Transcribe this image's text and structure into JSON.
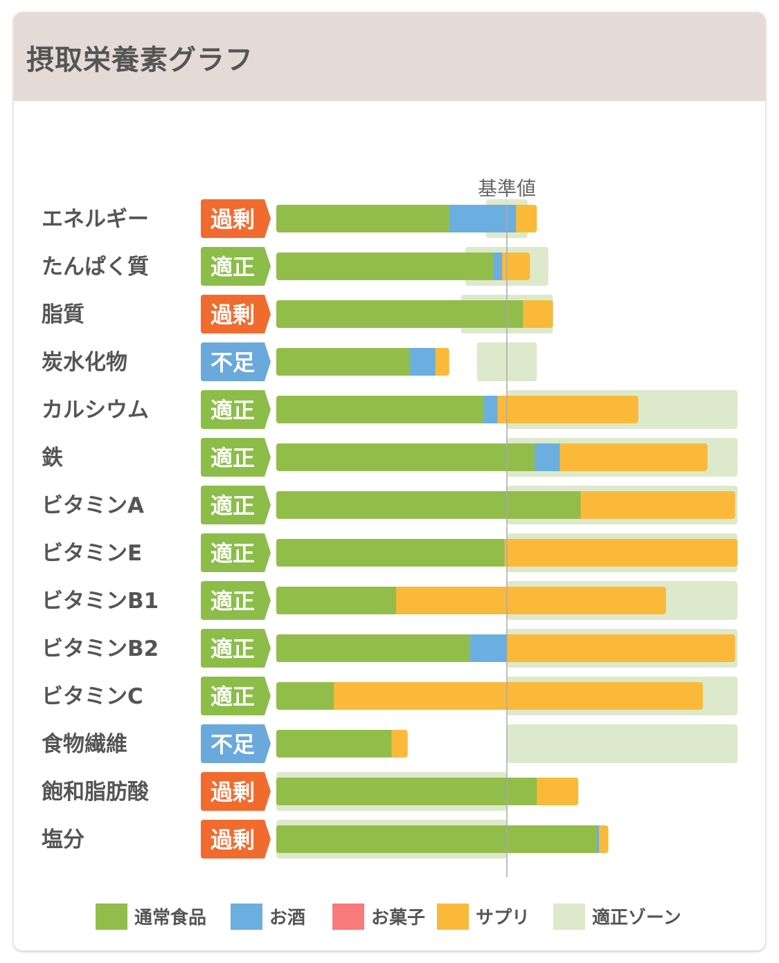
{
  "header": {
    "title": "摂取栄養素グラフ"
  },
  "chart_data": {
    "type": "bar",
    "stacked": true,
    "orientation": "horizontal",
    "reference_label": "基準値",
    "reference_value": 100,
    "x_unit": "% of reference",
    "categories": [
      "エネルギー",
      "たんぱく質",
      "脂質",
      "炭水化物",
      "カルシウム",
      "鉄",
      "ビタミンA",
      "ビタミンE",
      "ビタミンB1",
      "ビタミンB2",
      "ビタミンC",
      "食物繊維",
      "飽和脂肪酸",
      "塩分"
    ],
    "status": [
      "過剰",
      "適正",
      "過剰",
      "不足",
      "適正",
      "適正",
      "適正",
      "適正",
      "適正",
      "適正",
      "適正",
      "不足",
      "過剰",
      "過剰"
    ],
    "status_colors": {
      "過剰": "#f26b2e",
      "適正": "#8bbd48",
      "不足": "#6aa9db"
    },
    "series": [
      {
        "name": "通常食品",
        "color": "#92bd4b",
        "values": [
          75,
          94,
          107,
          58,
          90,
          112,
          132,
          99,
          52,
          84,
          25,
          50,
          113,
          139
        ]
      },
      {
        "name": "お酒",
        "color": "#6aafe0",
        "values": [
          29,
          4,
          0,
          11,
          6,
          11,
          0,
          0,
          0,
          16,
          0,
          0,
          0,
          1
        ]
      },
      {
        "name": "お菓子",
        "color": "#f97a7a",
        "values": [
          0,
          0,
          0,
          0,
          0,
          0,
          0,
          0,
          0,
          0,
          0,
          0,
          0,
          0
        ]
      },
      {
        "name": "サプリ",
        "color": "#fbb93a",
        "values": [
          9,
          12,
          13,
          6,
          61,
          64,
          67,
          101,
          117,
          99,
          160,
          7,
          18,
          4
        ]
      }
    ],
    "zone": {
      "name": "適正ゾーン",
      "color": "#dde9cb",
      "ranges": [
        [
          91,
          109
        ],
        [
          82,
          118
        ],
        [
          80,
          120
        ],
        [
          87,
          113
        ],
        [
          100,
          200
        ],
        [
          100,
          200
        ],
        [
          100,
          200
        ],
        [
          100,
          200
        ],
        [
          100,
          200
        ],
        [
          100,
          200
        ],
        [
          100,
          200
        ],
        [
          100,
          200
        ],
        [
          0,
          100
        ],
        [
          0,
          100
        ]
      ]
    },
    "xlim": [
      0,
      200
    ]
  },
  "legend": [
    {
      "label": "通常食品",
      "color": "#92bd4b"
    },
    {
      "label": "お酒",
      "color": "#6aafe0"
    },
    {
      "label": "お菓子",
      "color": "#f97a7a"
    },
    {
      "label": "サプリ",
      "color": "#fbb93a"
    },
    {
      "label": "適正ゾーン",
      "color": "#dde9cb"
    }
  ]
}
